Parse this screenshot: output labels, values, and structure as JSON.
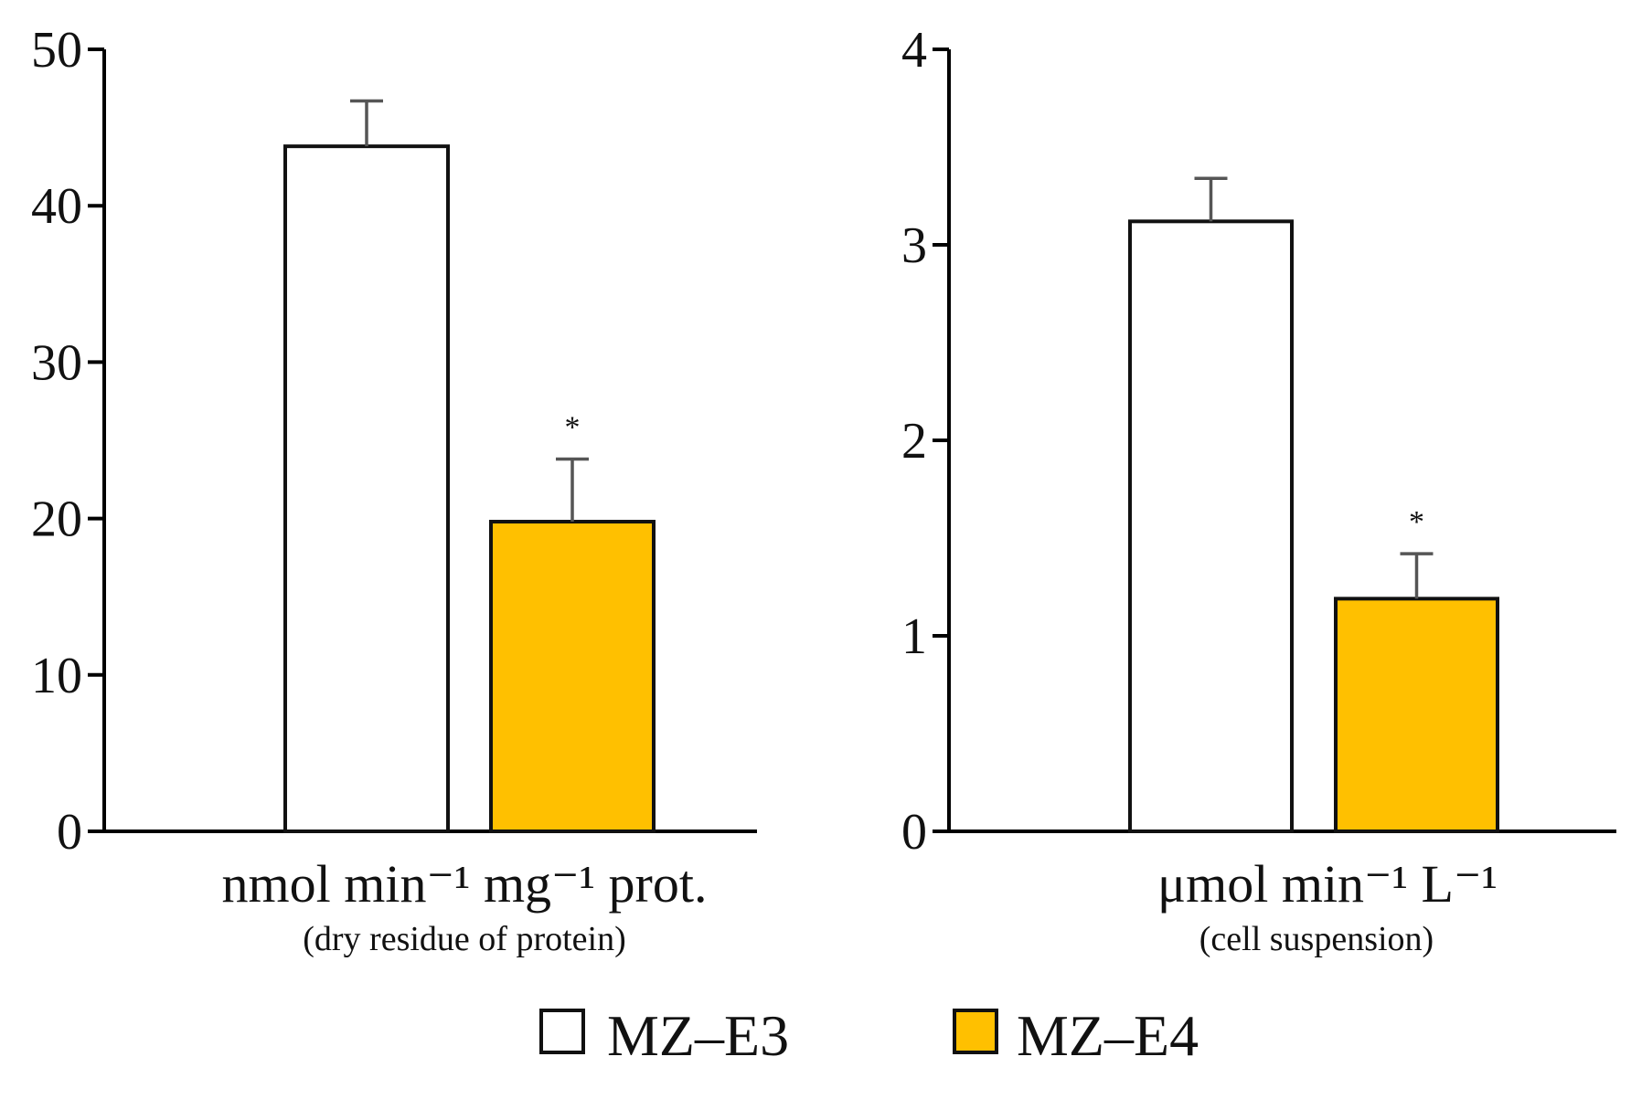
{
  "colors": {
    "mz_e3": "#ffffff",
    "mz_e4": "#ffc000",
    "axis": "#000000",
    "error_bar": "#555555"
  },
  "legend": [
    {
      "label": "MZ–E3",
      "color": "#ffffff"
    },
    {
      "label": "MZ–E4",
      "color": "#ffc000"
    }
  ],
  "chart_data": [
    {
      "type": "bar",
      "categories": [
        "MZ–E3",
        "MZ–E4"
      ],
      "values": [
        43.8,
        19.8
      ],
      "errors": [
        2.9,
        4.0
      ],
      "significance": [
        "",
        "*"
      ],
      "ylim": [
        0,
        50
      ],
      "yticks": [
        0,
        10,
        20,
        30,
        40,
        50
      ],
      "ytick_labels": [
        "0",
        "10",
        "20",
        "30",
        "40",
        "50"
      ],
      "xlabel": "nmol min⁻¹ mg⁻¹ prot.",
      "xlabel_sub": "(dry residue of protein)",
      "ylabel": "",
      "title": ""
    },
    {
      "type": "bar",
      "categories": [
        "MZ–E3",
        "MZ–E4"
      ],
      "values": [
        3.12,
        1.19
      ],
      "errors": [
        0.22,
        0.23
      ],
      "significance": [
        "",
        "*"
      ],
      "ylim": [
        0,
        4
      ],
      "yticks": [
        0,
        1,
        2,
        3,
        4
      ],
      "ytick_labels": [
        "0",
        "1",
        "2",
        "3",
        "4"
      ],
      "xlabel": "μmol min⁻¹ L⁻¹",
      "xlabel_sub": "(cell suspension)",
      "ylabel": "",
      "title": ""
    }
  ]
}
